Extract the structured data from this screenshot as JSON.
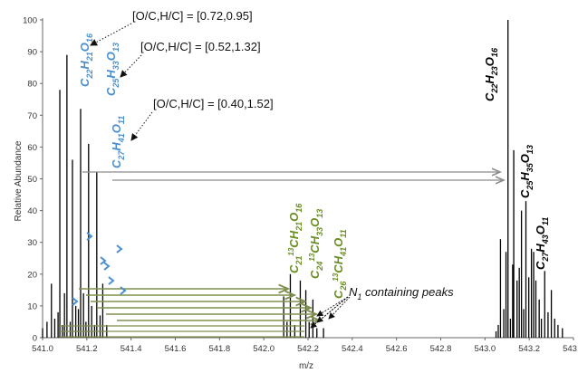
{
  "chart_data": {
    "type": "bar",
    "xlabel": "m/z",
    "ylabel": "Relative Abundance",
    "xlim": [
      541.0,
      543.4
    ],
    "ylim": [
      0,
      100
    ],
    "x_ticks": [
      "541.0",
      "541.2",
      "541.4",
      "541.6",
      "541.8",
      "542.0",
      "542.2",
      "542.4",
      "542.6",
      "542.8",
      "543.0",
      "543.2",
      "543.4"
    ],
    "y_ticks": [
      "0",
      "10",
      "20",
      "30",
      "40",
      "50",
      "60",
      "70",
      "80",
      "90",
      "100"
    ],
    "colors": {
      "peaks": "#000000",
      "blue": "#4a8fd0",
      "green": "#6b8e23",
      "gray_arrow": "#8c8c8c",
      "olive_arrow": "#7f8f4f"
    },
    "peaks": [
      {
        "x": 541.0,
        "y": 3
      },
      {
        "x": 541.02,
        "y": 5
      },
      {
        "x": 541.04,
        "y": 17
      },
      {
        "x": 541.055,
        "y": 6
      },
      {
        "x": 541.07,
        "y": 8
      },
      {
        "x": 541.078,
        "y": 78
      },
      {
        "x": 541.09,
        "y": 4
      },
      {
        "x": 541.099,
        "y": 14
      },
      {
        "x": 541.11,
        "y": 89
      },
      {
        "x": 541.125,
        "y": 5
      },
      {
        "x": 541.135,
        "y": 56
      },
      {
        "x": 541.15,
        "y": 10
      },
      {
        "x": 541.162,
        "y": 9
      },
      {
        "x": 541.172,
        "y": 72
      },
      {
        "x": 541.185,
        "y": 14
      },
      {
        "x": 541.196,
        "y": 5
      },
      {
        "x": 541.208,
        "y": 61
      },
      {
        "x": 541.222,
        "y": 10
      },
      {
        "x": 541.235,
        "y": 4
      },
      {
        "x": 541.245,
        "y": 52
      },
      {
        "x": 541.26,
        "y": 7
      },
      {
        "x": 541.272,
        "y": 17
      },
      {
        "x": 541.29,
        "y": 4
      },
      {
        "x": 542.09,
        "y": 13
      },
      {
        "x": 542.105,
        "y": 5
      },
      {
        "x": 542.12,
        "y": 20
      },
      {
        "x": 542.14,
        "y": 4
      },
      {
        "x": 542.165,
        "y": 18
      },
      {
        "x": 542.19,
        "y": 15
      },
      {
        "x": 542.205,
        "y": 5
      },
      {
        "x": 542.222,
        "y": 12
      },
      {
        "x": 542.24,
        "y": 3
      },
      {
        "x": 542.27,
        "y": 3
      },
      {
        "x": 543.05,
        "y": 2
      },
      {
        "x": 543.06,
        "y": 4
      },
      {
        "x": 543.07,
        "y": 31
      },
      {
        "x": 543.085,
        "y": 9
      },
      {
        "x": 543.095,
        "y": 27
      },
      {
        "x": 543.104,
        "y": 100
      },
      {
        "x": 543.115,
        "y": 6
      },
      {
        "x": 543.125,
        "y": 23
      },
      {
        "x": 543.13,
        "y": 59
      },
      {
        "x": 543.145,
        "y": 18
      },
      {
        "x": 543.155,
        "y": 22
      },
      {
        "x": 543.165,
        "y": 40
      },
      {
        "x": 543.175,
        "y": 9
      },
      {
        "x": 543.185,
        "y": 43
      },
      {
        "x": 543.198,
        "y": 19
      },
      {
        "x": 543.21,
        "y": 28
      },
      {
        "x": 543.22,
        "y": 27
      },
      {
        "x": 543.23,
        "y": 18
      },
      {
        "x": 543.245,
        "y": 12
      },
      {
        "x": 543.255,
        "y": 6
      },
      {
        "x": 543.27,
        "y": 21
      },
      {
        "x": 543.285,
        "y": 8
      },
      {
        "x": 543.3,
        "y": 15
      },
      {
        "x": 543.315,
        "y": 6
      },
      {
        "x": 543.33,
        "y": 4
      },
      {
        "x": 543.35,
        "y": 3
      }
    ],
    "annotations": {
      "oc_hc": [
        {
          "text": "[O/C,H/C] = [0.72,0.95]"
        },
        {
          "text": "[O/C,H/C] = [0.52,1.32]"
        },
        {
          "text": "[O/C,H/C] = [0.40,1.52]"
        }
      ],
      "n1_label": "N containing peaks",
      "n1_label_main": "N",
      "n1_label_sub": "1",
      "n1_label_rest": " containing peaks"
    },
    "formulas": {
      "blue": [
        {
          "parts": [
            "C",
            "22",
            "H",
            "21",
            "O",
            "16"
          ]
        },
        {
          "parts": [
            "C",
            "25",
            "H",
            "33",
            "O",
            "13"
          ]
        },
        {
          "parts": [
            "C",
            "27",
            "H",
            "41",
            "O",
            "11"
          ]
        }
      ],
      "black": [
        {
          "parts": [
            "C",
            "22",
            "H",
            "23",
            "O",
            "16"
          ]
        },
        {
          "parts": [
            "C",
            "25",
            "H",
            "35",
            "O",
            "13"
          ]
        },
        {
          "parts": [
            "C",
            "27",
            "H",
            "43",
            "O",
            "11"
          ]
        }
      ],
      "green": [
        {
          "parts": [
            "C",
            "21",
            "13",
            "CH",
            "21",
            "O",
            "16"
          ]
        },
        {
          "parts": [
            "C",
            "24",
            "13",
            "CH",
            "33",
            "O",
            "13"
          ]
        },
        {
          "parts": [
            "C",
            "26",
            "13",
            "CH",
            "41",
            "O",
            "11"
          ]
        }
      ]
    }
  }
}
